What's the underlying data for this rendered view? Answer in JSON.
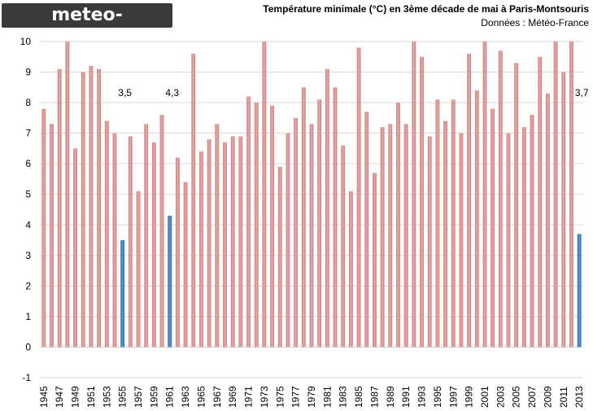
{
  "logo_text": "meteo-villes.com",
  "title": "Température minimale (°C) en 3ème décade de mai à Paris-Montsouris",
  "source": "Données : Météo-France",
  "colors": {
    "bar": "#d99594",
    "highlight": "#3f7fbf",
    "grid": "#d9d9d9"
  },
  "chart_data": {
    "type": "bar",
    "title": "Température minimale (°C) en 3ème décade de mai à Paris-Montsouris",
    "xlabel": "",
    "ylabel": "",
    "ylim": [
      -1,
      10
    ],
    "yticks": [
      -1,
      0,
      1,
      2,
      3,
      4,
      5,
      6,
      7,
      8,
      9,
      10
    ],
    "grid": true,
    "x_tick_labels": [
      "1945",
      "1947",
      "1949",
      "1951",
      "1953",
      "1955",
      "1957",
      "1959",
      "1961",
      "1963",
      "1965",
      "1967",
      "1969",
      "1971",
      "1973",
      "1975",
      "1977",
      "1979",
      "1981",
      "1983",
      "1985",
      "1987",
      "1989",
      "1991",
      "1993",
      "1995",
      "1997",
      "1999",
      "2001",
      "2003",
      "2005",
      "2007",
      "2009",
      "2011",
      "2013"
    ],
    "categories": [
      "1945",
      "1946",
      "1947",
      "1948",
      "1949",
      "1950",
      "1951",
      "1952",
      "1953",
      "1954",
      "1955",
      "1956",
      "1957",
      "1958",
      "1959",
      "1960",
      "1961",
      "1962",
      "1963",
      "1964",
      "1965",
      "1966",
      "1967",
      "1968",
      "1969",
      "1970",
      "1971",
      "1972",
      "1973",
      "1974",
      "1975",
      "1976",
      "1977",
      "1978",
      "1979",
      "1980",
      "1981",
      "1982",
      "1983",
      "1984",
      "1985",
      "1986",
      "1987",
      "1988",
      "1989",
      "1990",
      "1991",
      "1992",
      "1993",
      "1994",
      "1995",
      "1996",
      "1997",
      "1998",
      "1999",
      "2000",
      "2001",
      "2002",
      "2003",
      "2004",
      "2005",
      "2006",
      "2007",
      "2008",
      "2009",
      "2010",
      "2011",
      "2012",
      "2013"
    ],
    "values": [
      7.8,
      7.3,
      9.1,
      10.0,
      6.5,
      9.0,
      9.2,
      9.1,
      7.4,
      7.0,
      3.5,
      6.9,
      5.1,
      7.3,
      6.7,
      7.6,
      4.3,
      6.2,
      5.4,
      9.6,
      6.4,
      6.8,
      7.3,
      6.7,
      6.9,
      6.9,
      8.2,
      8.0,
      10.0,
      7.9,
      5.9,
      7.0,
      7.5,
      8.5,
      7.3,
      8.1,
      9.1,
      8.5,
      6.6,
      5.1,
      9.8,
      7.7,
      5.7,
      7.2,
      7.3,
      8.0,
      7.3,
      10.0,
      9.5,
      6.9,
      8.1,
      7.4,
      8.1,
      7.0,
      9.6,
      8.4,
      10.0,
      7.8,
      9.7,
      7.0,
      9.3,
      7.2,
      7.6,
      9.5,
      8.3,
      10.0,
      9.0,
      10.0,
      3.7
    ],
    "highlighted": [
      "1955",
      "1961",
      "2013"
    ],
    "annotations": [
      {
        "year": "1955",
        "text": "3,5"
      },
      {
        "year": "1961",
        "text": "4,3"
      },
      {
        "year": "2013",
        "text": "3,7"
      }
    ]
  }
}
